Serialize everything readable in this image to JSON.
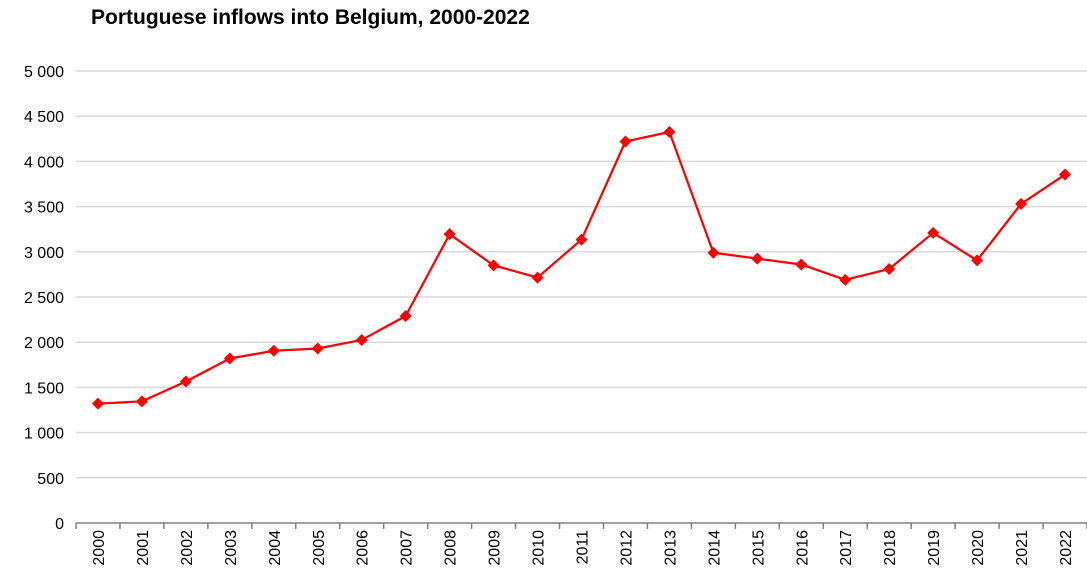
{
  "chart_data": {
    "type": "line",
    "title": "Portuguese inflows into Belgium, 2000-2022",
    "xlabel": "",
    "ylabel": "",
    "x": [
      "2000",
      "2001",
      "2002",
      "2003",
      "2004",
      "2005",
      "2006",
      "2007",
      "2008",
      "2009",
      "2010",
      "2011",
      "2012",
      "2013",
      "2014",
      "2015",
      "2016",
      "2017",
      "2018",
      "2019",
      "2020",
      "2021",
      "2022"
    ],
    "series": [
      {
        "values": [
          1320,
          1345,
          1565,
          1820,
          1905,
          1930,
          2025,
          2290,
          3195,
          2850,
          2715,
          3135,
          4220,
          4325,
          2990,
          2925,
          2860,
          2690,
          2810,
          3210,
          2905,
          3530,
          3855
        ],
        "color": "#ff0000",
        "marker": "diamond"
      }
    ],
    "ylim": [
      0,
      5000
    ],
    "yticks": [
      0,
      500,
      1000,
      1500,
      2000,
      2500,
      3000,
      3500,
      4000,
      4500,
      5000
    ],
    "ytick_labels": [
      "0",
      "500",
      "1 000",
      "1 500",
      "2 000",
      "2 500",
      "3 000",
      "3 500",
      "4 000",
      "4 500",
      "5 000"
    ],
    "grid": true,
    "gridline_color": "#d9d9d9",
    "axis_color": "#808080"
  }
}
